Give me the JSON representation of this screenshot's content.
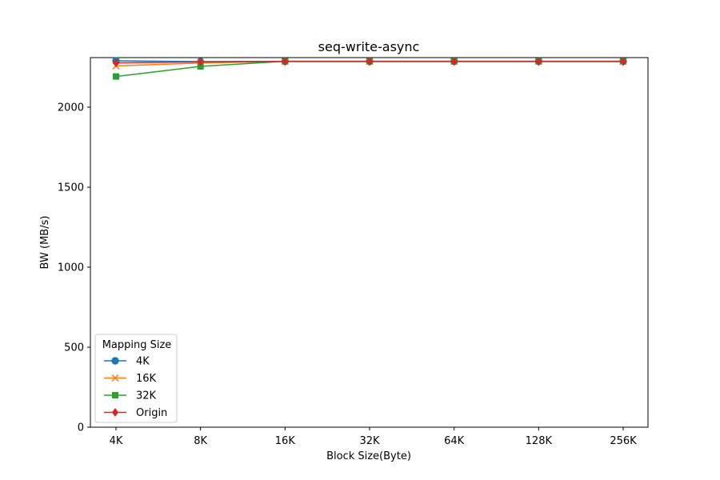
{
  "chart_data": {
    "type": "line",
    "title": "seq-write-async",
    "xlabel": "Block Size(Byte)",
    "ylabel": "BW (MB/s)",
    "categories": [
      "4K",
      "8K",
      "16K",
      "32K",
      "64K",
      "128K",
      "256K"
    ],
    "ylim": [
      0,
      2310
    ],
    "yticks": [
      0,
      500,
      1000,
      1500,
      2000
    ],
    "grid": false,
    "legend": {
      "title": "Mapping Size",
      "placement": "lower-left"
    },
    "series": [
      {
        "name": "4K",
        "color": "#1f77b4",
        "marker": "circle",
        "values": [
          2290,
          2285,
          2287,
          2287,
          2287,
          2287,
          2287
        ]
      },
      {
        "name": "16K",
        "color": "#ff7f0e",
        "marker": "x",
        "values": [
          2258,
          2276,
          2287,
          2287,
          2287,
          2287,
          2287
        ]
      },
      {
        "name": "32K",
        "color": "#2ca02c",
        "marker": "square",
        "values": [
          2192,
          2255,
          2287,
          2287,
          2287,
          2287,
          2287
        ]
      },
      {
        "name": "Origin",
        "color": "#d62728",
        "marker": "diamond",
        "values": [
          2277,
          2283,
          2285,
          2285,
          2285,
          2285,
          2285
        ]
      }
    ]
  }
}
